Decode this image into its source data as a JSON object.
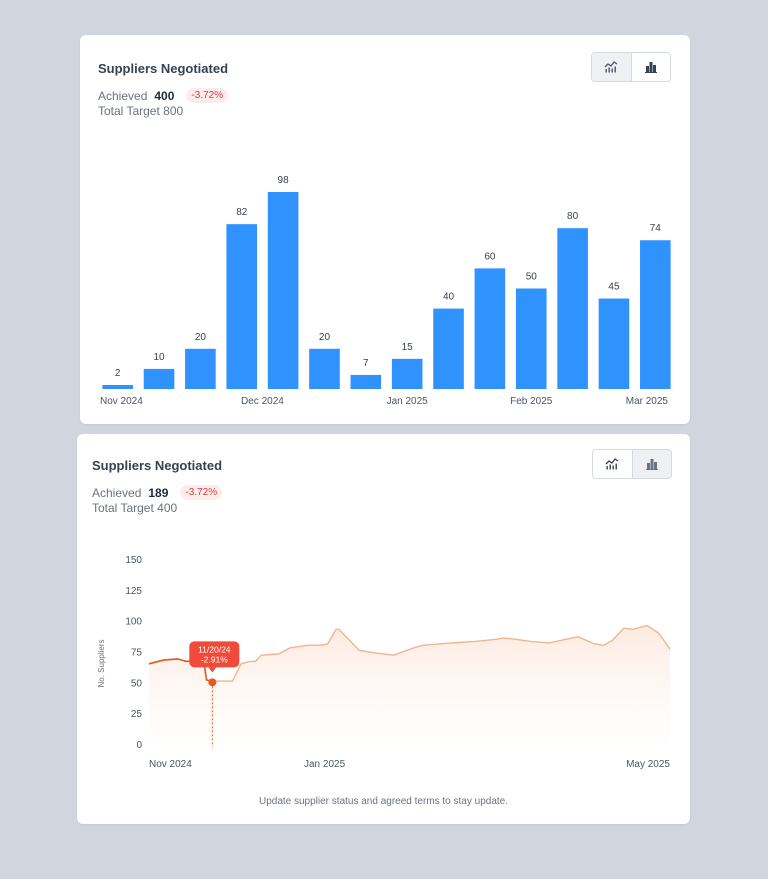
{
  "cards": [
    {
      "title": "Suppliers Negotiated",
      "achieved_label": "Achieved",
      "achieved_value": "400",
      "change": "-3.72%",
      "total_target": "Total Target 800",
      "active_view": "bar"
    },
    {
      "title": "Suppliers Negotiated",
      "achieved_label": "Achieved",
      "achieved_value": "189",
      "change": "-3.72%",
      "total_target": "Total Target 400",
      "active_view": "line",
      "footnote": "Update supplier status and agreed terms to stay update."
    }
  ],
  "toggle_icons": [
    "line-chart-icon",
    "bar-chart-icon"
  ],
  "colors": {
    "bar": "#3092fc",
    "line": "#e35b1f",
    "line_faded": "#f2b48f",
    "tooltip_bg": "#f04a3a",
    "badge_text": "#e03c3c",
    "badge_bg": "#fdecec"
  },
  "chart_data": [
    {
      "type": "bar",
      "values": [
        2,
        10,
        20,
        82,
        98,
        20,
        7,
        15,
        40,
        60,
        50,
        80,
        45,
        74
      ],
      "x_tick_labels": [
        "Nov 2024",
        "Dec 2024",
        "Jan 2025",
        "Feb 2025",
        "Mar 2025"
      ],
      "x_tick_positions": [
        0,
        3.5,
        7,
        10,
        13
      ],
      "data_labels": true,
      "ylim": [
        0,
        98
      ],
      "grid": false
    },
    {
      "type": "area",
      "ylabel": "No. Suppliers",
      "y_ticks": [
        0,
        25,
        50,
        75,
        100,
        125,
        150
      ],
      "ylim": [
        0,
        150
      ],
      "x_ticks": [
        "Nov 2024",
        "Jan 2025",
        "May 2025"
      ],
      "x_range": [
        "2024-11-01",
        "2025-05-01"
      ],
      "series": [
        {
          "x": [
            "2024-11-01",
            "2024-11-06",
            "2024-11-11",
            "2024-11-14",
            "2024-11-18",
            "2024-11-20",
            "2024-11-21",
            "2024-11-23",
            "2024-11-30",
            "2024-12-03",
            "2024-12-06",
            "2024-12-08",
            "2024-12-10",
            "2024-12-16",
            "2024-12-20",
            "2024-12-26",
            "2024-12-30",
            "2025-01-02",
            "2025-01-05",
            "2025-01-06",
            "2025-01-13",
            "2025-01-18",
            "2025-01-25",
            "2025-02-01",
            "2025-02-04",
            "2025-02-14",
            "2025-02-22",
            "2025-03-02",
            "2025-03-04",
            "2025-03-08",
            "2025-03-14",
            "2025-03-20",
            "2025-03-26",
            "2025-03-30",
            "2025-04-05",
            "2025-04-08",
            "2025-04-11",
            "2025-04-15",
            "2025-04-18",
            "2025-04-23",
            "2025-04-27",
            "2025-05-01"
          ],
          "y": [
            65,
            68,
            69,
            67,
            68,
            67,
            52,
            51,
            51,
            65,
            67,
            67,
            72,
            73,
            78,
            80,
            80,
            81,
            93,
            93,
            76,
            74,
            72,
            78,
            80,
            82,
            83,
            85,
            86,
            85,
            83,
            82,
            85,
            87,
            81,
            80,
            84,
            94,
            93,
            96,
            90,
            77
          ]
        }
      ],
      "highlight_until": "2024-11-23",
      "tooltip": {
        "date": "11/20/24",
        "value": "-2.91%",
        "x": "2024-11-23",
        "y": 50
      }
    }
  ]
}
